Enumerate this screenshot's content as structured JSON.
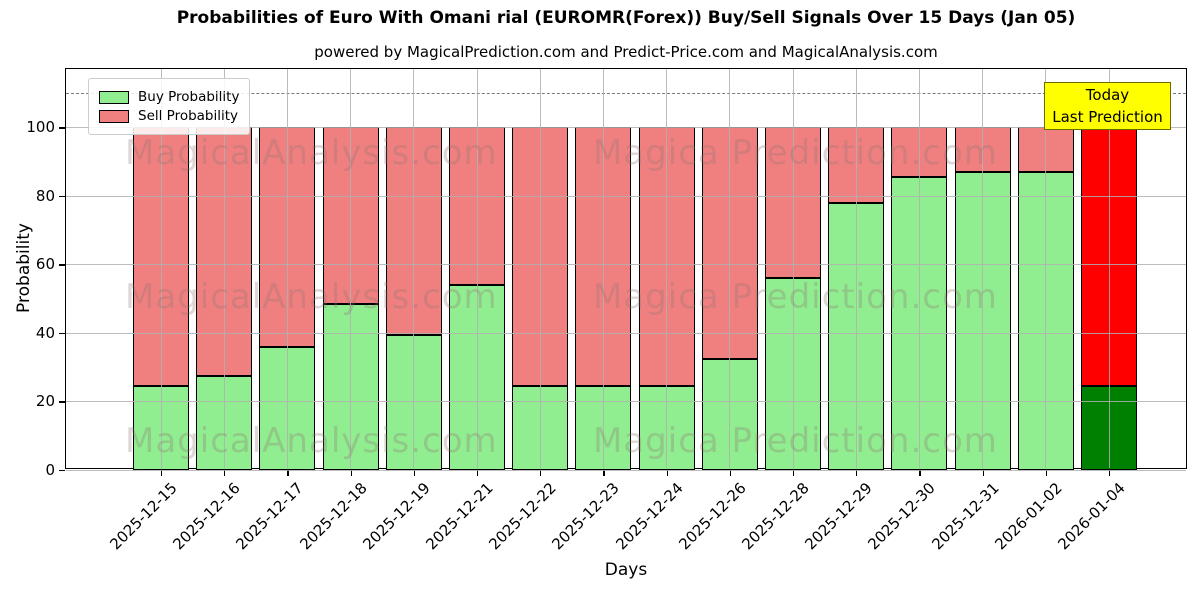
{
  "figure": {
    "subtitle": "powered by MagicalPrediction.com and Predict-Price.com and MagicalAnalysis.com",
    "watermark_left": "MagicalAnalysis.com",
    "watermark_right": "Magica Prediction.com",
    "annotation": {
      "line1": "Today",
      "line2": "Last Prediction",
      "bg_color": "#ffff00"
    }
  },
  "chart_data": {
    "type": "bar",
    "stacked": true,
    "title": "Probabilities of Euro With Omani rial (EUROMR(Forex)) Buy/Sell Signals Over 15 Days (Jan 05)",
    "xlabel": "Days",
    "ylabel": "Probability",
    "categories": [
      "2025-12-15",
      "2025-12-16",
      "2025-12-17",
      "2025-12-18",
      "2025-12-19",
      "2025-12-21",
      "2025-12-22",
      "2025-12-23",
      "2025-12-24",
      "2025-12-26",
      "2025-12-28",
      "2025-12-29",
      "2025-12-30",
      "2025-12-31",
      "2026-01-02",
      "2026-01-04"
    ],
    "series": [
      {
        "name": "Buy Probability",
        "color": "#90ee90",
        "values": [
          24.5,
          27.5,
          36,
          48.5,
          39.5,
          54,
          24.5,
          24.5,
          24.5,
          32.5,
          56,
          78,
          85.5,
          87,
          87,
          24.5
        ]
      },
      {
        "name": "Sell Probability",
        "color": "#f08080",
        "values": [
          75.5,
          72.5,
          64,
          51.5,
          60.5,
          46,
          75.5,
          75.5,
          75.5,
          67.5,
          44,
          22,
          14.5,
          13,
          13,
          75.5
        ]
      }
    ],
    "last_bar_colors": {
      "buy": "#008000",
      "sell": "#ff0000"
    },
    "yticks": [
      0,
      20,
      40,
      60,
      80,
      100
    ],
    "ylim": [
      0,
      117
    ],
    "dashed_hline": 110,
    "grid": true,
    "legend_position": "upper left"
  }
}
